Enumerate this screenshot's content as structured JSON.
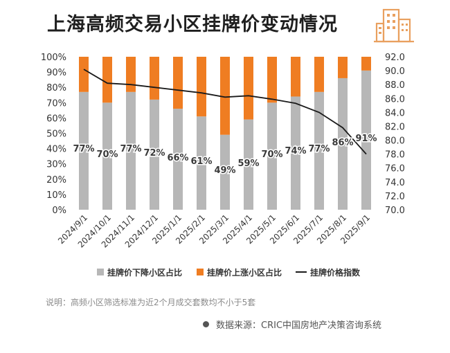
{
  "header": {
    "title": "上海高频交易小区挂牌价变动情况",
    "logo_icon": "buildings-icon"
  },
  "colors": {
    "down": "#b7b7b7",
    "up": "#ef7d22",
    "line": "#1a1a1a",
    "logo": "#e9a05f"
  },
  "chart_data": {
    "type": "bar",
    "title": "上海高频交易小区挂牌价变动情况",
    "categories": [
      "2024/9/1",
      "2024/10/1",
      "2024/11/1",
      "2024/12/1",
      "2025/1/1",
      "2025/2/1",
      "2025/3/1",
      "2025/4/1",
      "2025/5/1",
      "2025/6/1",
      "2025/7/1",
      "2025/8/1",
      "2025/9/1"
    ],
    "series": [
      {
        "name": "挂牌价下降小区占比",
        "type": "stacked-bar",
        "axis": "left",
        "values": [
          77,
          70,
          77,
          72,
          66,
          61,
          49,
          59,
          70,
          74,
          77,
          86,
          91
        ]
      },
      {
        "name": "挂牌价上涨小区占比",
        "type": "stacked-bar",
        "axis": "left",
        "values": [
          23,
          30,
          23,
          28,
          34,
          39,
          51,
          41,
          30,
          26,
          23,
          14,
          9
        ]
      },
      {
        "name": "挂牌价格指数",
        "type": "line",
        "axis": "right",
        "values": [
          90.2,
          88.2,
          88.0,
          87.6,
          87.2,
          86.8,
          86.2,
          86.4,
          85.9,
          85.3,
          84.0,
          81.8,
          78.0
        ]
      }
    ],
    "data_labels": [
      "77%",
      "70%",
      "77%",
      "72%",
      "66%",
      "61%",
      "49%",
      "59%",
      "70%",
      "74%",
      "77%",
      "86%",
      "91%"
    ],
    "y_left": {
      "ticks": [
        "0%",
        "10%",
        "20%",
        "30%",
        "40%",
        "50%",
        "60%",
        "70%",
        "80%",
        "90%",
        "100%"
      ],
      "ylim": [
        0,
        100
      ]
    },
    "y_right": {
      "ticks": [
        "70.0",
        "72.0",
        "74.0",
        "76.0",
        "78.0",
        "80.0",
        "82.0",
        "84.0",
        "86.0",
        "88.0",
        "90.0",
        "92.0"
      ],
      "ylim": [
        70,
        92
      ]
    },
    "legend_position": "bottom",
    "grid": false
  },
  "footer": {
    "note": "说明：高频小区筛选标准为近2个月成交套数均不小于5套",
    "source": "数据来源：CRIC中国房地产决策咨询系统"
  }
}
